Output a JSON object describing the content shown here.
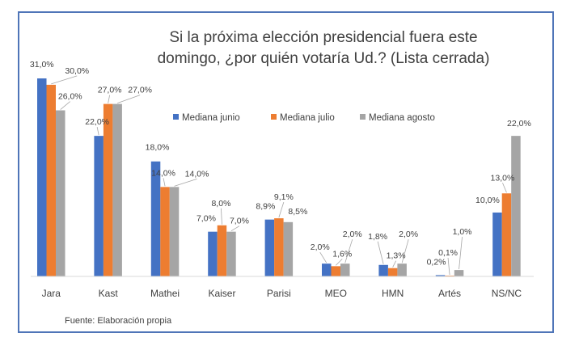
{
  "chart_data": {
    "type": "bar",
    "title_lines": [
      "Si la próxima elección presidencial fuera este",
      "domingo, ¿por quién votaría Ud.? (Lista cerrada)"
    ],
    "categories": [
      "Jara",
      "Kast",
      "Mathei",
      "Kaiser",
      "Parisi",
      "MEO",
      "HMN",
      "Artés",
      "NS/NC"
    ],
    "series": [
      {
        "name": "Mediana junio",
        "color": "#4472c4",
        "values": [
          31.0,
          22.0,
          18.0,
          7.0,
          8.9,
          2.0,
          1.8,
          0.2,
          10.0
        ],
        "labels": [
          "31,0%",
          "22,0%",
          "18,0%",
          "7,0%",
          "8,9%",
          "2,0%",
          "1,8%",
          "0,2%",
          "10,0%"
        ]
      },
      {
        "name": "Mediana julio",
        "color": "#ed7d31",
        "values": [
          30.0,
          27.0,
          14.0,
          8.0,
          9.1,
          1.6,
          1.3,
          0.1,
          13.0
        ],
        "labels": [
          "30,0%",
          "27,0%",
          "14,0%",
          "8,0%",
          "9,1%",
          "1,6%",
          "1,3%",
          "0,1%",
          "13,0%"
        ]
      },
      {
        "name": "Mediana agosto",
        "color": "#a5a5a5",
        "values": [
          26.0,
          27.0,
          14.0,
          7.0,
          8.5,
          2.0,
          2.0,
          1.0,
          22.0
        ],
        "labels": [
          "26,0%",
          "27,0%",
          "14,0%",
          "7,0%",
          "8,5%",
          "2,0%",
          "2,0%",
          "1,0%",
          "22,0%"
        ]
      }
    ],
    "ylim": [
      0,
      31
    ],
    "legend_position": "top-center",
    "grid": false,
    "source": "Fuente: Elaboración propia"
  }
}
